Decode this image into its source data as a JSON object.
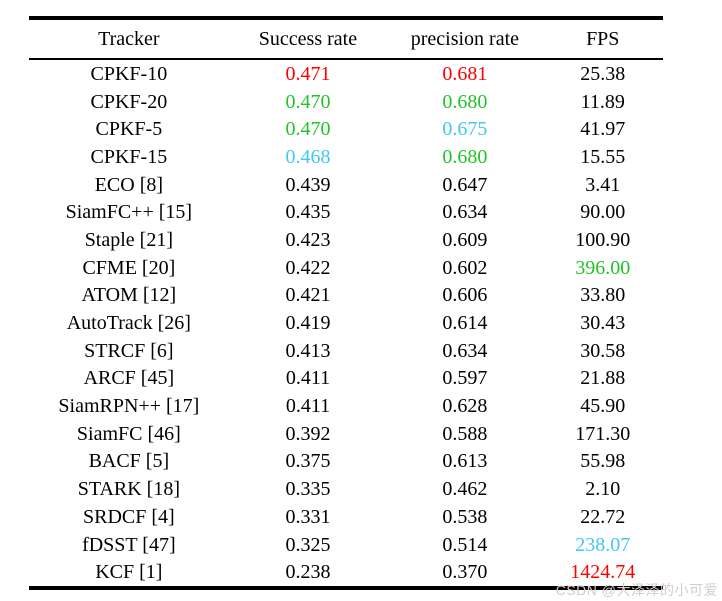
{
  "colors": {
    "black": "#000000",
    "red": "#fe0000",
    "green": "#22c32a",
    "cyan": "#41c7f5"
  },
  "watermark": {
    "text": "CSDN @大泽泽的小可爱"
  },
  "table": {
    "columns": [
      "Tracker",
      "Success rate",
      "precision rate",
      "FPS"
    ],
    "rows": [
      {
        "tracker": "CPKF-10",
        "success": "0.471",
        "precision": "0.681",
        "fps": "25.38",
        "success_color": "red",
        "precision_color": "red",
        "fps_color": "black"
      },
      {
        "tracker": "CPKF-20",
        "success": "0.470",
        "precision": "0.680",
        "fps": "11.89",
        "success_color": "green",
        "precision_color": "green",
        "fps_color": "black"
      },
      {
        "tracker": "CPKF-5",
        "success": "0.470",
        "precision": "0.675",
        "fps": "41.97",
        "success_color": "green",
        "precision_color": "cyan",
        "fps_color": "black"
      },
      {
        "tracker": "CPKF-15",
        "success": "0.468",
        "precision": "0.680",
        "fps": "15.55",
        "success_color": "cyan",
        "precision_color": "green",
        "fps_color": "black"
      },
      {
        "tracker": "ECO [8]",
        "success": "0.439",
        "precision": "0.647",
        "fps": "3.41",
        "success_color": "black",
        "precision_color": "black",
        "fps_color": "black"
      },
      {
        "tracker": "SiamFC++ [15]",
        "success": "0.435",
        "precision": "0.634",
        "fps": "90.00",
        "success_color": "black",
        "precision_color": "black",
        "fps_color": "black"
      },
      {
        "tracker": "Staple [21]",
        "success": "0.423",
        "precision": "0.609",
        "fps": "100.90",
        "success_color": "black",
        "precision_color": "black",
        "fps_color": "black"
      },
      {
        "tracker": "CFME [20]",
        "success": "0.422",
        "precision": "0.602",
        "fps": "396.00",
        "success_color": "black",
        "precision_color": "black",
        "fps_color": "green"
      },
      {
        "tracker": "ATOM [12]",
        "success": "0.421",
        "precision": "0.606",
        "fps": "33.80",
        "success_color": "black",
        "precision_color": "black",
        "fps_color": "black"
      },
      {
        "tracker": "AutoTrack [26]",
        "success": "0.419",
        "precision": "0.614",
        "fps": "30.43",
        "success_color": "black",
        "precision_color": "black",
        "fps_color": "black"
      },
      {
        "tracker": "STRCF [6]",
        "success": "0.413",
        "precision": "0.634",
        "fps": "30.58",
        "success_color": "black",
        "precision_color": "black",
        "fps_color": "black"
      },
      {
        "tracker": "ARCF [45]",
        "success": "0.411",
        "precision": "0.597",
        "fps": "21.88",
        "success_color": "black",
        "precision_color": "black",
        "fps_color": "black"
      },
      {
        "tracker": "SiamRPN++ [17]",
        "success": "0.411",
        "precision": "0.628",
        "fps": "45.90",
        "success_color": "black",
        "precision_color": "black",
        "fps_color": "black"
      },
      {
        "tracker": "SiamFC [46]",
        "success": "0.392",
        "precision": "0.588",
        "fps": "171.30",
        "success_color": "black",
        "precision_color": "black",
        "fps_color": "black"
      },
      {
        "tracker": "BACF [5]",
        "success": "0.375",
        "precision": "0.613",
        "fps": "55.98",
        "success_color": "black",
        "precision_color": "black",
        "fps_color": "black"
      },
      {
        "tracker": "STARK [18]",
        "success": "0.335",
        "precision": "0.462",
        "fps": "2.10",
        "success_color": "black",
        "precision_color": "black",
        "fps_color": "black"
      },
      {
        "tracker": "SRDCF [4]",
        "success": "0.331",
        "precision": "0.538",
        "fps": "22.72",
        "success_color": "black",
        "precision_color": "black",
        "fps_color": "black"
      },
      {
        "tracker": "fDSST [47]",
        "success": "0.325",
        "precision": "0.514",
        "fps": "238.07",
        "success_color": "black",
        "precision_color": "black",
        "fps_color": "cyan"
      },
      {
        "tracker": "KCF [1]",
        "success": "0.238",
        "precision": "0.370",
        "fps": "1424.74",
        "success_color": "black",
        "precision_color": "black",
        "fps_color": "red"
      }
    ]
  }
}
